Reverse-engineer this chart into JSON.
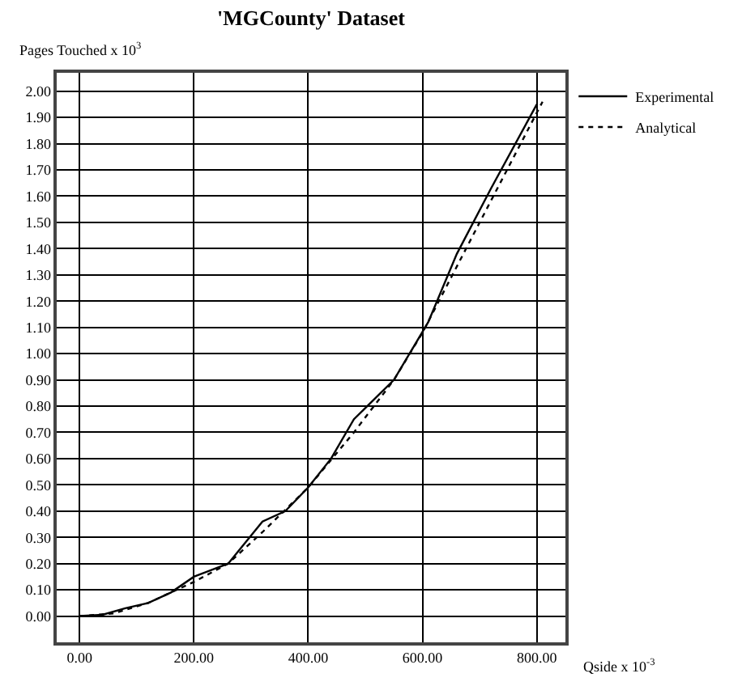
{
  "chart_data": {
    "type": "line",
    "title": "'MGCounty' Dataset",
    "xlabel": "Qside x 10$^{-3}$",
    "ylabel": "Pages Touched x 10$^{3}$",
    "series": [
      {
        "name": "Experimental",
        "color": "#000000",
        "line_style": "solid",
        "x": [
          0,
          40,
          80,
          120,
          160,
          200,
          260,
          320,
          360,
          400,
          440,
          480,
          550,
          610,
          660,
          720,
          800
        ],
        "values": [
          0,
          0.005,
          0.03,
          0.05,
          0.09,
          0.15,
          0.2,
          0.36,
          0.4,
          0.49,
          0.6,
          0.75,
          0.9,
          1.12,
          1.38,
          1.63,
          1.95
        ]
      },
      {
        "name": "Analytical",
        "color": "#000000",
        "line_style": "dotted",
        "x": [
          0,
          60,
          120,
          200,
          260,
          320,
          400,
          480,
          550,
          600,
          700,
          810
        ],
        "values": [
          0,
          0.01,
          0.05,
          0.13,
          0.2,
          0.32,
          0.49,
          0.7,
          0.9,
          1.08,
          1.5,
          1.96
        ]
      }
    ],
    "xlim": [
      -40,
      850
    ],
    "ylim": [
      -0.1,
      2.07
    ],
    "xticks": [
      {
        "value": 0,
        "label": "0.00"
      },
      {
        "value": 200,
        "label": "200.00"
      },
      {
        "value": 400,
        "label": "400.00"
      },
      {
        "value": 600,
        "label": "600.00"
      },
      {
        "value": 800,
        "label": "800.00"
      }
    ],
    "yticks": [
      {
        "value": 0,
        "label": "0.00"
      },
      {
        "value": 0.1,
        "label": "0.10"
      },
      {
        "value": 0.2,
        "label": "0.20"
      },
      {
        "value": 0.3,
        "label": "0.30"
      },
      {
        "value": 0.4,
        "label": "0.40"
      },
      {
        "value": 0.5,
        "label": "0.50"
      },
      {
        "value": 0.6,
        "label": "0.60"
      },
      {
        "value": 0.7,
        "label": "0.70"
      },
      {
        "value": 0.8,
        "label": "0.80"
      },
      {
        "value": 0.9,
        "label": "0.90"
      },
      {
        "value": 1.0,
        "label": "1.00"
      },
      {
        "value": 1.1,
        "label": "1.10"
      },
      {
        "value": 1.2,
        "label": "1.20"
      },
      {
        "value": 1.3,
        "label": "1.30"
      },
      {
        "value": 1.4,
        "label": "1.40"
      },
      {
        "value": 1.5,
        "label": "1.50"
      },
      {
        "value": 1.6,
        "label": "1.60"
      },
      {
        "value": 1.7,
        "label": "1.70"
      },
      {
        "value": 1.8,
        "label": "1.80"
      },
      {
        "value": 1.9,
        "label": "1.90"
      },
      {
        "value": 2.0,
        "label": "2.00"
      }
    ],
    "grid": true,
    "legend": "top right",
    "marker": "none"
  }
}
